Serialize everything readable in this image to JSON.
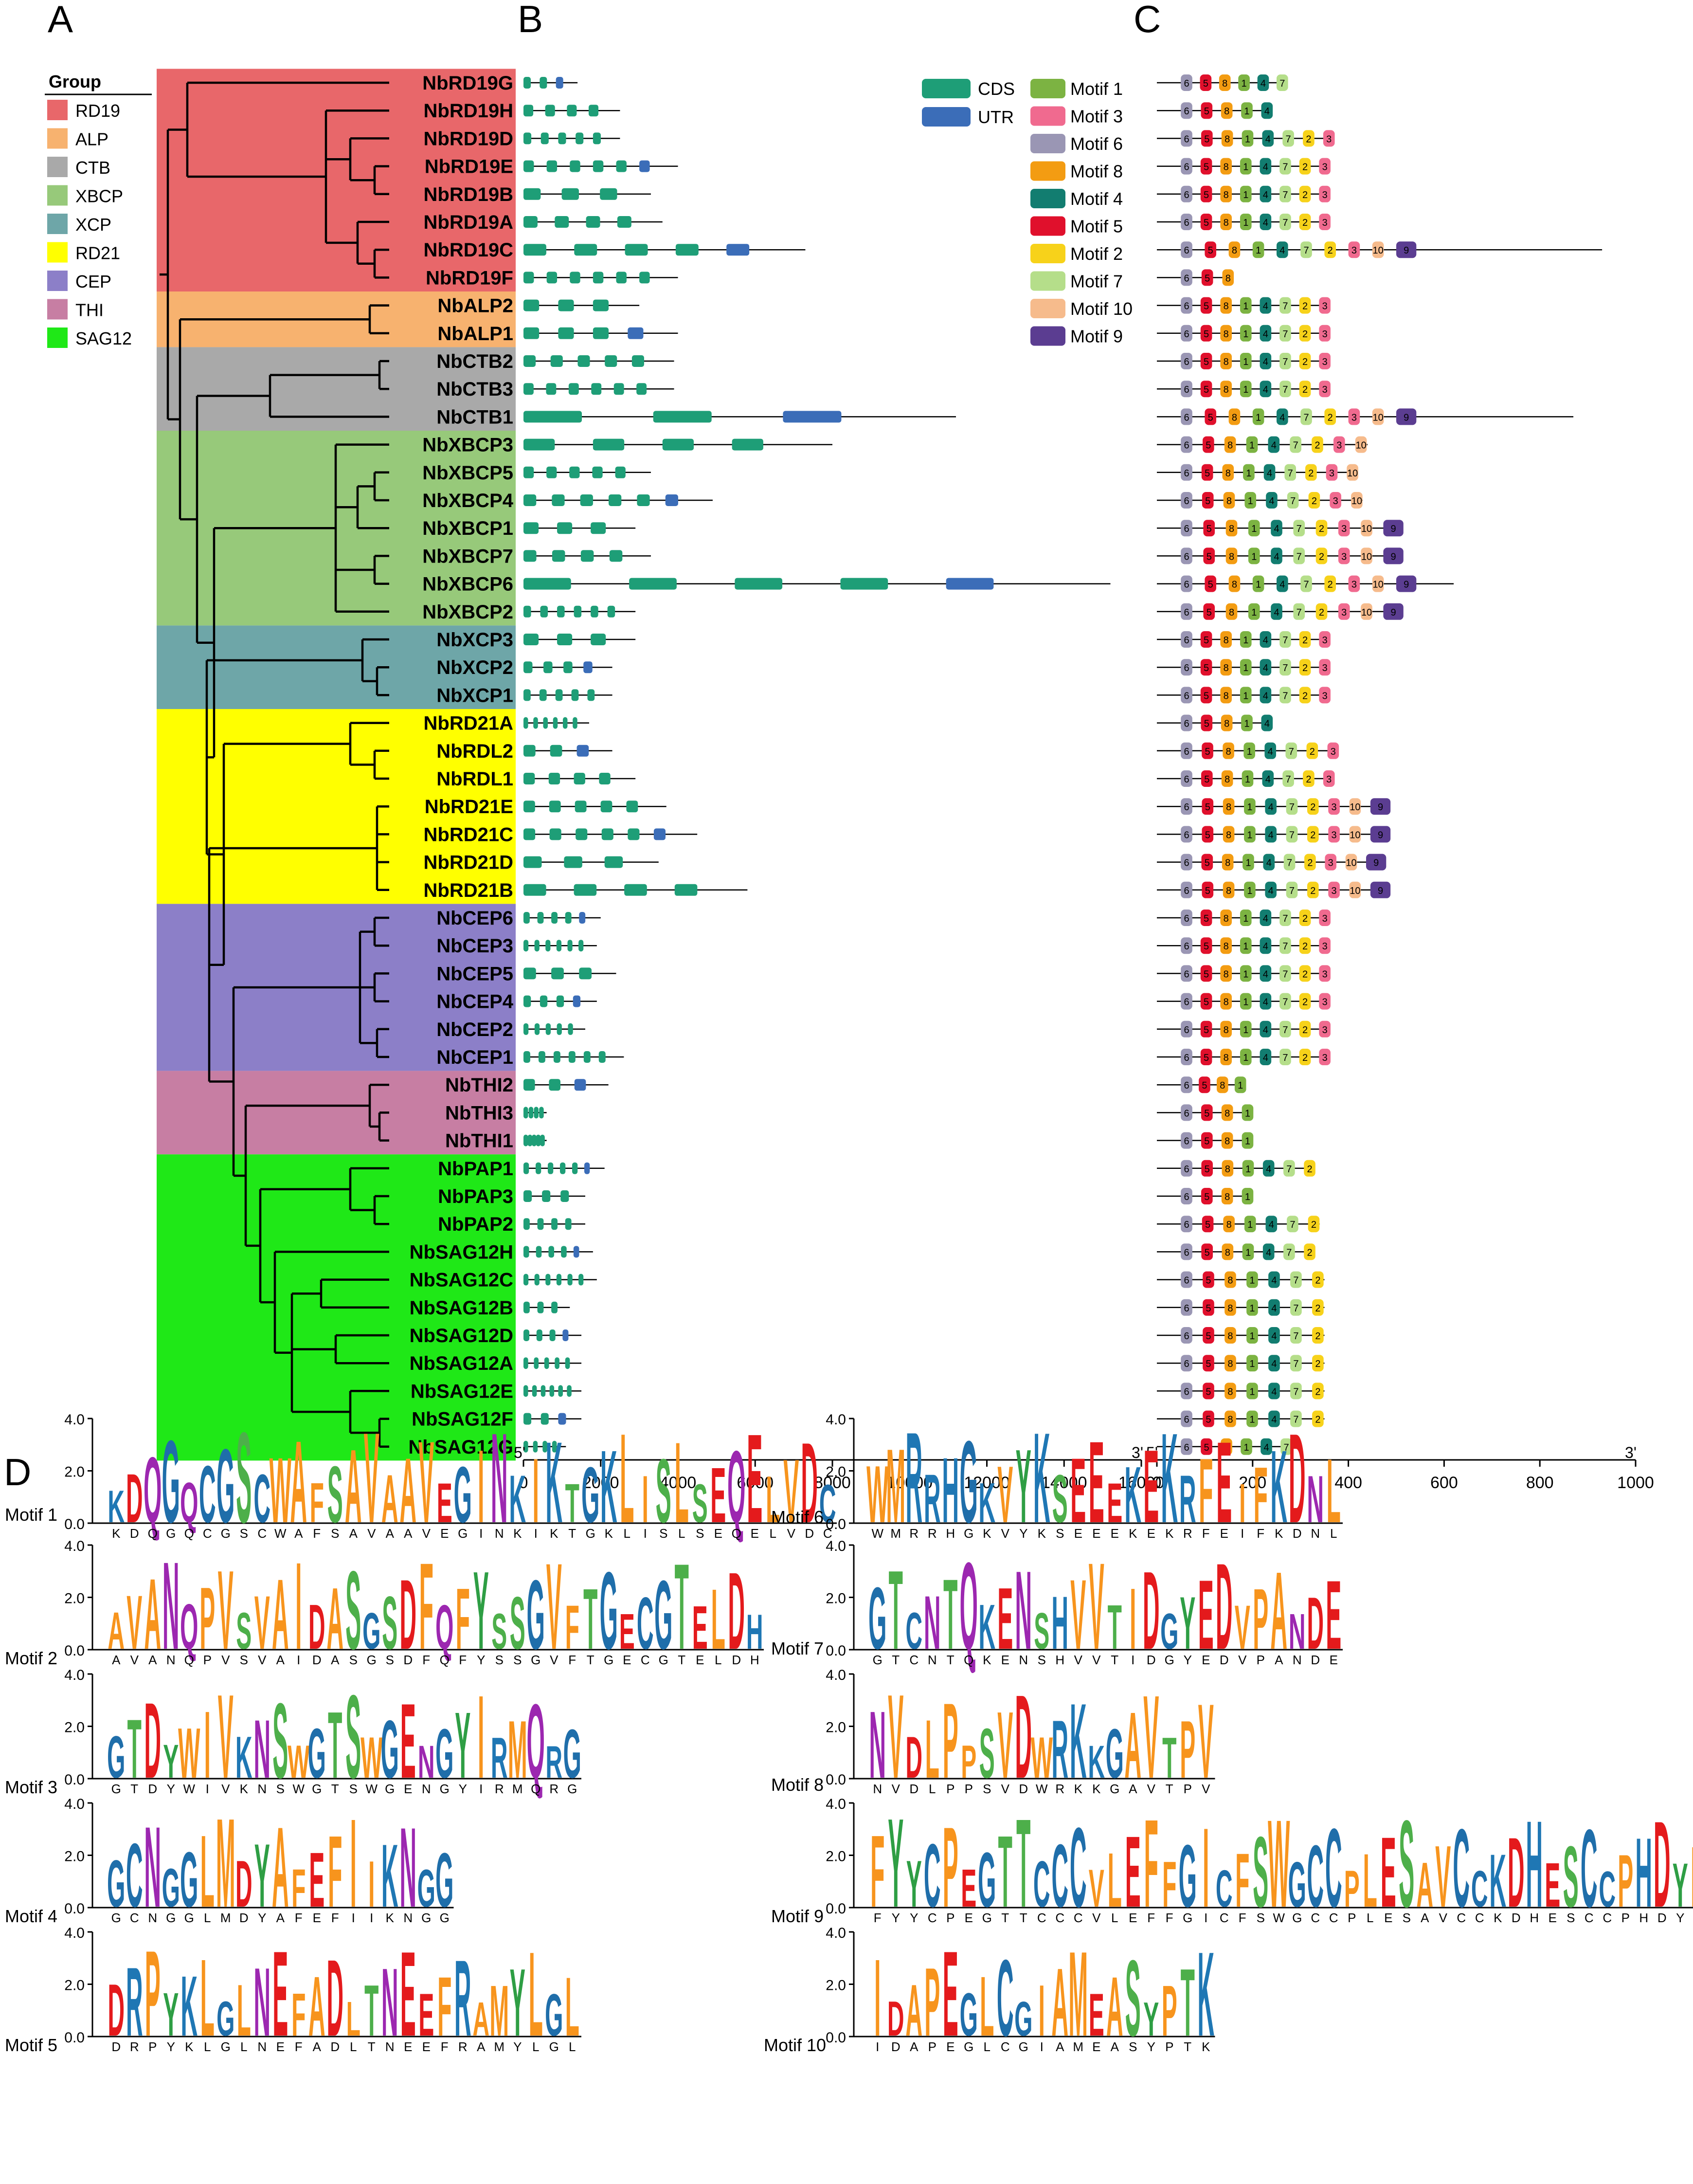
{
  "panel_labels": {
    "a": "A",
    "b": "B",
    "c": "C",
    "d": "D"
  },
  "group_legend": {
    "title": "Group",
    "items": [
      {
        "name": "RD19",
        "color": "#E8676A"
      },
      {
        "name": "ALP",
        "color": "#F7B26F"
      },
      {
        "name": "CTB",
        "color": "#A9A9A9"
      },
      {
        "name": "XBCP",
        "color": "#97C97A"
      },
      {
        "name": "XCP",
        "color": "#6EA6A8"
      },
      {
        "name": "RD21",
        "color": "#FFFF00"
      },
      {
        "name": "CEP",
        "color": "#8C7FC8"
      },
      {
        "name": "THI",
        "color": "#C77EA3"
      },
      {
        "name": "SAG12",
        "color": "#1FE817"
      }
    ]
  },
  "gene_groups": [
    {
      "name": "RD19",
      "genes": [
        "NbRD19G",
        "NbRD19H",
        "NbRD19D",
        "NbRD19E",
        "NbRD19B",
        "NbRD19A",
        "NbRD19C",
        "NbRD19F"
      ]
    },
    {
      "name": "ALP",
      "genes": [
        "NbALP2",
        "NbALP1"
      ]
    },
    {
      "name": "CTB",
      "genes": [
        "NbCTB2",
        "NbCTB3",
        "NbCTB1"
      ]
    },
    {
      "name": "XBCP",
      "genes": [
        "NbXBCP3",
        "NbXBCP5",
        "NbXBCP4",
        "NbXBCP1",
        "NbXBCP7",
        "NbXBCP6",
        "NbXBCP2"
      ]
    },
    {
      "name": "XCP",
      "genes": [
        "NbXCP3",
        "NbXCP2",
        "NbXCP1"
      ]
    },
    {
      "name": "RD21",
      "genes": [
        "NbRD21A",
        "NbRDL2",
        "NbRDL1",
        "NbRD21E",
        "NbRD21C",
        "NbRD21D",
        "NbRD21B"
      ]
    },
    {
      "name": "CEP",
      "genes": [
        "NbCEP6",
        "NbCEP3",
        "NbCEP5",
        "NbCEP4",
        "NbCEP2",
        "NbCEP1"
      ]
    },
    {
      "name": "THI",
      "genes": [
        "NbTHI2",
        "NbTHI3",
        "NbTHI1"
      ]
    },
    {
      "name": "SAG12",
      "genes": [
        "NbPAP1",
        "NbPAP3",
        "NbPAP2",
        "NbSAG12H",
        "NbSAG12C",
        "NbSAG12B",
        "NbSAG12D",
        "NbSAG12A",
        "NbSAG12E",
        "NbSAG12F",
        "NbSAG12G"
      ]
    }
  ],
  "gene_legend": {
    "items": [
      {
        "name": "CDS",
        "color": "#1E9E77"
      },
      {
        "name": "UTR",
        "color": "#3B6DB8"
      }
    ]
  },
  "gene_lengths_bp": [
    1400,
    2500,
    2500,
    4000,
    3300,
    3600,
    7300,
    4000,
    3000,
    4000,
    3900,
    3900,
    11200,
    8000,
    3300,
    4900,
    2900,
    3300,
    15200,
    2900,
    2900,
    2300,
    2300,
    1700,
    2300,
    2900,
    3700,
    4500,
    3500,
    5800,
    2000,
    1900,
    2400,
    1900,
    1600,
    2600,
    2200,
    600,
    600,
    2100,
    1600,
    1600,
    1800,
    1900,
    1200,
    1500,
    1500,
    1500,
    1500,
    1100
  ],
  "gene_axis": {
    "ticks": [
      0,
      2000,
      4000,
      6000,
      8000,
      10000,
      12000,
      14000,
      16000
    ],
    "tick_labels": [
      "0",
      "2000",
      "4000",
      "6000",
      "8000",
      "10000",
      "12000",
      "14000",
      "16000"
    ],
    "start_label": "5'",
    "end_label": "3'"
  },
  "motif_legend": {
    "items": [
      {
        "name": "Motif 1",
        "id": "1",
        "color": "#7CB342"
      },
      {
        "name": "Motif 3",
        "id": "3",
        "color": "#F06A8F"
      },
      {
        "name": "Motif 6",
        "id": "6",
        "color": "#9A96B4"
      },
      {
        "name": "Motif 8",
        "id": "8",
        "color": "#F39C12"
      },
      {
        "name": "Motif 4",
        "id": "4",
        "color": "#127D70"
      },
      {
        "name": "Motif 5",
        "id": "5",
        "color": "#E0102C"
      },
      {
        "name": "Motif 2",
        "id": "2",
        "color": "#F7D21A"
      },
      {
        "name": "Motif 7",
        "id": "7",
        "color": "#B5DE8A"
      },
      {
        "name": "Motif 10",
        "id": "10",
        "color": "#F6BB8C"
      },
      {
        "name": "Motif 9",
        "id": "9",
        "color": "#5B3D91"
      }
    ]
  },
  "protein_lengths_aa": [
    270,
    240,
    370,
    360,
    360,
    360,
    930,
    160,
    360,
    360,
    360,
    360,
    870,
    440,
    420,
    430,
    500,
    500,
    620,
    500,
    360,
    360,
    360,
    240,
    380,
    370,
    470,
    470,
    460,
    470,
    360,
    360,
    360,
    360,
    360,
    360,
    180,
    200,
    200,
    330,
    200,
    340,
    330,
    350,
    350,
    350,
    350,
    350,
    350,
    280
  ],
  "motif_axis": {
    "ticks": [
      0,
      200,
      400,
      600,
      800,
      1000
    ],
    "tick_labels": [
      "0",
      "200",
      "400",
      "600",
      "800",
      "1000"
    ],
    "start_label": "5'",
    "end_label": "3'"
  },
  "logos": [
    {
      "label": "Motif 1",
      "y_tick_labels": [
        "0.0",
        "2.0",
        "4.0"
      ],
      "sequence": "KDQGQCGSCWAFSAVAAVEGINKIKTGKLISLSEQELVDC"
    },
    {
      "label": "Motif 2",
      "y_tick_labels": [
        "0.0",
        "2.0",
        "4.0"
      ],
      "sequence": "AVANQPVSVAIDASGSDFQFYSSGVFTGECGTELDH"
    },
    {
      "label": "Motif 3",
      "y_tick_labels": [
        "0.0",
        "2.0",
        "4.0"
      ],
      "sequence": "GTDYWIVKNSWGTSWGENGYIRMQRG"
    },
    {
      "label": "Motif 4",
      "y_tick_labels": [
        "0.0",
        "2.0",
        "4.0"
      ],
      "sequence": "GCNGGLMDYAFEFIIKNGG"
    },
    {
      "label": "Motif 5",
      "y_tick_labels": [
        "0.0",
        "2.0",
        "4.0"
      ],
      "sequence": "DRPYKLGLNEFADLTNEEFRAMYLGL"
    },
    {
      "label": "Motif 6",
      "y_tick_labels": [
        "0.0",
        "2.0",
        "4.0"
      ],
      "sequence": "WMRRHGKVYKSEEEKEKRFEIFKDNL"
    },
    {
      "label": "Motif 7",
      "y_tick_labels": [
        "0.0",
        "2.0",
        "4.0"
      ],
      "sequence": "GTCNTQKENSHVVTIDGYEDVPANDE"
    },
    {
      "label": "Motif 8",
      "y_tick_labels": [
        "0.0",
        "2.0",
        "4.0"
      ],
      "sequence": "NVDLPPSVDWRKKGAVTPV"
    },
    {
      "label": "Motif 9",
      "y_tick_labels": [
        "0.0",
        "2.0",
        "4.0"
      ],
      "sequence": "FYYCPEGTTCCCVLEFFGICFSWGCCPLESAVCCKDHESCCPHDYPICDV"
    },
    {
      "label": "Motif 10",
      "y_tick_labels": [
        "0.0",
        "2.0",
        "4.0"
      ],
      "sequence": "IDAPEGLCGIAMEASYPTK"
    }
  ],
  "colors": {
    "cds": "#1E9E77",
    "utr": "#3B6DB8",
    "line": "#000000"
  }
}
